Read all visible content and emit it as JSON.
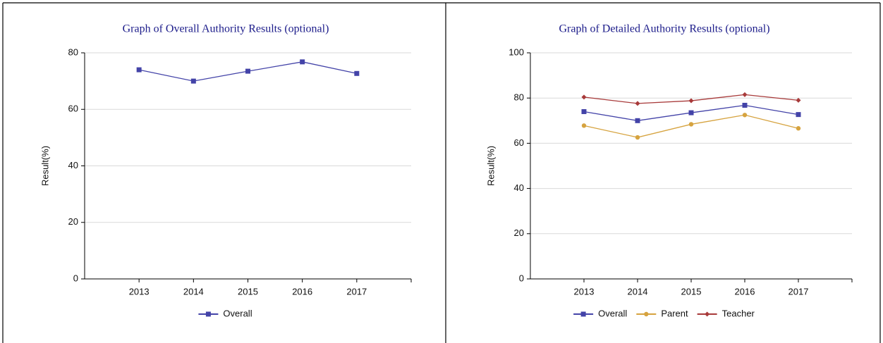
{
  "chart_data": [
    {
      "type": "line",
      "title": "Graph of Overall Authority Results (optional)",
      "y_label": "Result(%)",
      "categories": [
        "2013",
        "2014",
        "2015",
        "2016",
        "2017"
      ],
      "series": [
        {
          "name": "Overall",
          "color": "#4343a8",
          "marker": "square",
          "values": [
            74,
            70,
            73.5,
            76.8,
            72.7
          ]
        }
      ],
      "ylim": [
        0,
        80
      ],
      "yticks": [
        0,
        20,
        40,
        60,
        80
      ],
      "grid": true
    },
    {
      "type": "line",
      "title": "Graph of Detailed Authority Results (optional)",
      "y_label": "Result(%)",
      "categories": [
        "2013",
        "2014",
        "2015",
        "2016",
        "2017"
      ],
      "series": [
        {
          "name": "Overall",
          "color": "#4343a8",
          "marker": "square",
          "values": [
            74,
            70,
            73.5,
            76.8,
            72.7
          ]
        },
        {
          "name": "Parent",
          "color": "#d6a33f",
          "marker": "circle",
          "values": [
            67.8,
            62.6,
            68.4,
            72.5,
            66.6
          ]
        },
        {
          "name": "Teacher",
          "color": "#a83a3a",
          "marker": "diamond",
          "values": [
            80.4,
            77.6,
            78.8,
            81.5,
            79
          ]
        }
      ],
      "ylim": [
        0,
        100
      ],
      "yticks": [
        0,
        20,
        40,
        60,
        80,
        100
      ],
      "grid": true
    }
  ]
}
